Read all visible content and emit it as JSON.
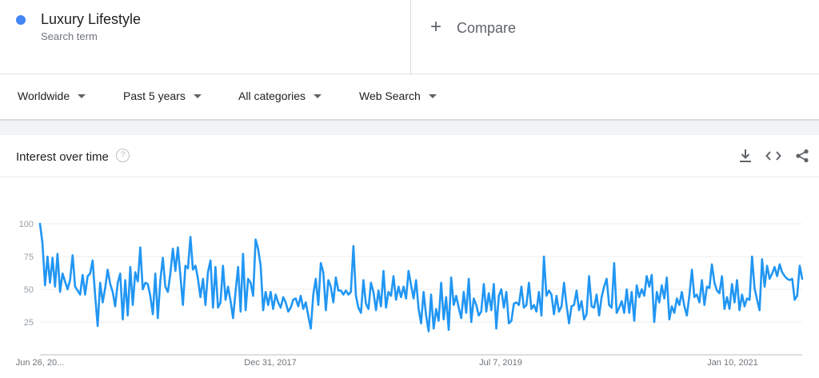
{
  "term": {
    "name": "Luxury Lifestyle",
    "subtitle": "Search term",
    "color": "#4285f4"
  },
  "compare": {
    "plus": "+",
    "label": "Compare"
  },
  "filters": {
    "region": "Worldwide",
    "period": "Past 5 years",
    "category": "All categories",
    "search_type": "Web Search"
  },
  "card": {
    "title": "Interest over time",
    "help": "?"
  },
  "chart_data": {
    "type": "line",
    "title": "Interest over time",
    "xlabel": "",
    "ylabel": "",
    "ylim": [
      0,
      100
    ],
    "yticks": [
      25,
      50,
      75,
      100
    ],
    "xtick_labels": [
      "Jun 26, 20...",
      "Dec 31, 2017",
      "Jul 7, 2019",
      "Jan 10, 2021"
    ],
    "grid": "horizontal",
    "series": [
      {
        "color": "#4285f4",
        "values": [
          100,
          85,
          53,
          75,
          55,
          74,
          52,
          77,
          48,
          62,
          56,
          50,
          57,
          76,
          52,
          49,
          46,
          61,
          46,
          60,
          62,
          72,
          45,
          22,
          55,
          40,
          51,
          65,
          54,
          48,
          37,
          55,
          62,
          27,
          57,
          30,
          67,
          38,
          63,
          56,
          82,
          50,
          55,
          54,
          45,
          31,
          62,
          28,
          57,
          74,
          52,
          48,
          62,
          81,
          64,
          82,
          60,
          38,
          68,
          66,
          90,
          65,
          68,
          58,
          44,
          58,
          38,
          63,
          72,
          36,
          67,
          36,
          40,
          68,
          42,
          52,
          41,
          28,
          48,
          67,
          33,
          77,
          34,
          58,
          55,
          45,
          88,
          81,
          68,
          34,
          48,
          38,
          48,
          35,
          46,
          40,
          36,
          44,
          40,
          33,
          36,
          42,
          43,
          37,
          45,
          35,
          40,
          30,
          20,
          46,
          58,
          38,
          70,
          63,
          34,
          57,
          52,
          40,
          59,
          49,
          49,
          46,
          49,
          46,
          48,
          83,
          45,
          36,
          32,
          57,
          39,
          35,
          55,
          48,
          34,
          49,
          37,
          64,
          36,
          48,
          45,
          60,
          42,
          52,
          44,
          52,
          43,
          64,
          53,
          43,
          57,
          35,
          24,
          48,
          30,
          18,
          46,
          20,
          35,
          26,
          55,
          27,
          44,
          19,
          59,
          38,
          45,
          36,
          28,
          48,
          32,
          58,
          25,
          43,
          38,
          30,
          33,
          54,
          33,
          47,
          34,
          54,
          20,
          45,
          50,
          36,
          48,
          24,
          26,
          39,
          40,
          38,
          52,
          36,
          38,
          55,
          35,
          38,
          33,
          48,
          30,
          75,
          45,
          49,
          46,
          31,
          45,
          33,
          37,
          55,
          38,
          24,
          37,
          38,
          49,
          34,
          41,
          27,
          31,
          60,
          37,
          36,
          46,
          30,
          44,
          52,
          58,
          38,
          36,
          70,
          32,
          36,
          41,
          32,
          50,
          32,
          48,
          26,
          53,
          44,
          50,
          45,
          60,
          52,
          61,
          25,
          48,
          40,
          53,
          43,
          59,
          27,
          37,
          32,
          43,
          38,
          48,
          37,
          30,
          45,
          65,
          44,
          46,
          40,
          57,
          38,
          52,
          51,
          69,
          55,
          49,
          47,
          60,
          35,
          44,
          35,
          54,
          40,
          57,
          34,
          46,
          37,
          43,
          42,
          75,
          51,
          42,
          34,
          73,
          52,
          68,
          58,
          62,
          67,
          60,
          69,
          63,
          60,
          58,
          57,
          58,
          42,
          45,
          68,
          58
        ]
      }
    ]
  }
}
